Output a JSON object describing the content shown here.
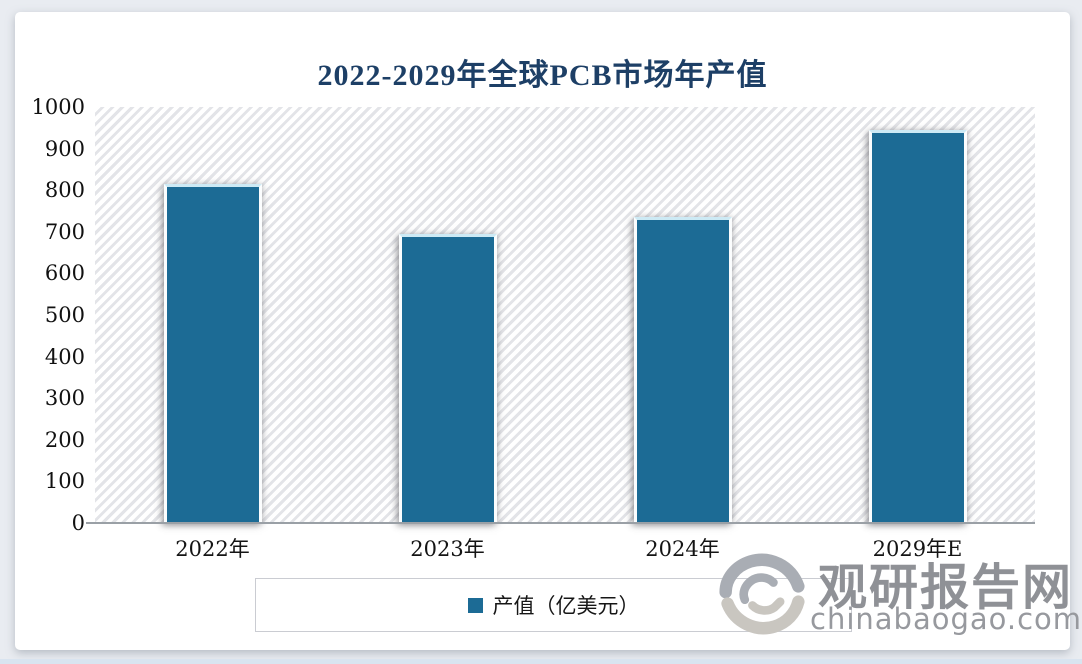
{
  "title": "2022-2029年全球PCB市场年产值",
  "legend": {
    "label": "产值（亿美元）",
    "swatch_color": "#1c6b95"
  },
  "watermark": {
    "brand": "观研报告网",
    "domain": "chinabaogao.com"
  },
  "colors": {
    "bar": "#1c6b95",
    "title": "#1d3f66",
    "axis_line": "#9aa0a6"
  },
  "chart_data": {
    "type": "bar",
    "title": "2022-2029年全球PCB市场年产值",
    "categories": [
      "2022年",
      "2023年",
      "2024年",
      "2029年E"
    ],
    "series": [
      {
        "name": "产值（亿美元）",
        "values": [
          815,
          695,
          735,
          945
        ]
      }
    ],
    "xlabel": "",
    "ylabel": "",
    "ylim": [
      0,
      1000
    ],
    "yticks": [
      0,
      100,
      200,
      300,
      400,
      500,
      600,
      700,
      800,
      900,
      1000
    ],
    "grid": false,
    "legend_position": "bottom",
    "bar_color": "#1c6b95",
    "plot_background": "diagonal-hatch"
  }
}
